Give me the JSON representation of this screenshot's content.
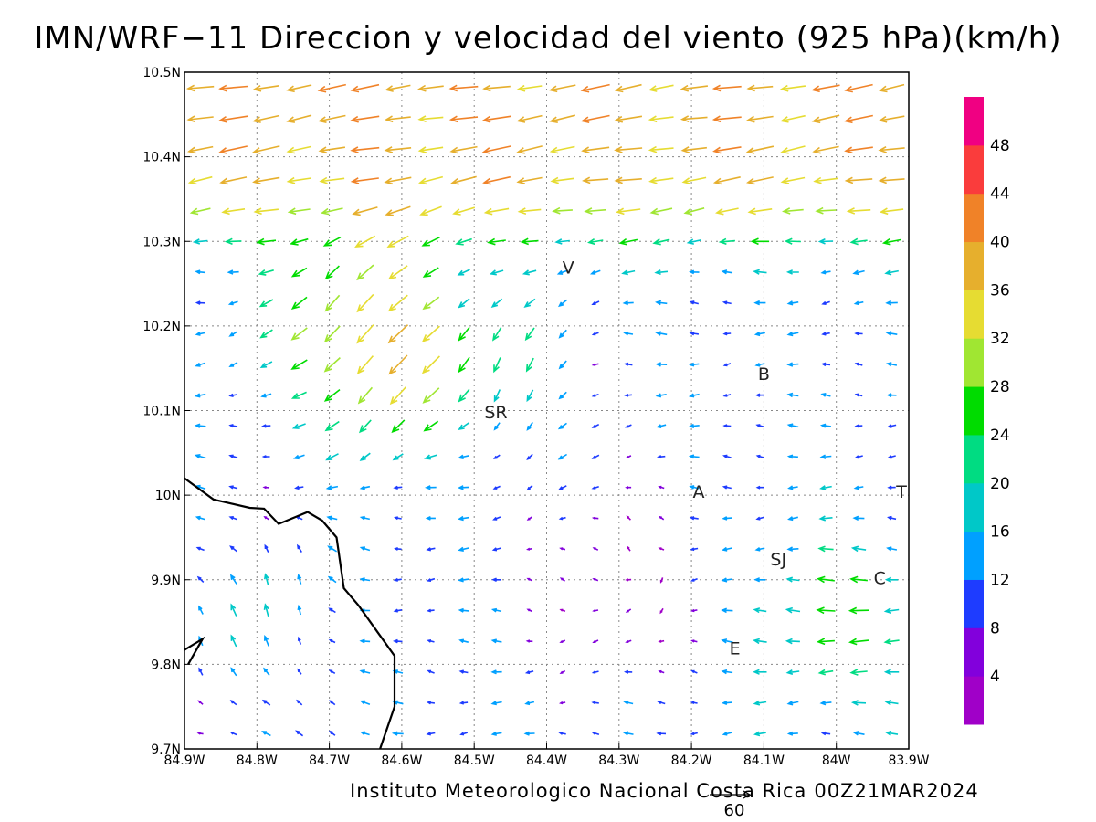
{
  "title": "IMN/WRF−11 Direccion y velocidad del viento (925 hPa)(km/h)",
  "footer": {
    "institution": "Instituto Meteorologico Nacional Costa Rica",
    "timestamp": "00Z21MAR2024"
  },
  "reference_vector": {
    "label": "60"
  },
  "map": {
    "lon_range": [
      -84.9,
      -83.9
    ],
    "lat_range": [
      9.7,
      10.5
    ],
    "lon_ticks": [
      "84.9W",
      "84.8W",
      "84.7W",
      "84.6W",
      "84.5W",
      "84.4W",
      "84.3W",
      "84.2W",
      "84.1W",
      "84W",
      "83.9W"
    ],
    "lat_ticks": [
      "9.7N",
      "9.8N",
      "9.9N",
      "10N",
      "10.1N",
      "10.2N",
      "10.3N",
      "10.4N",
      "10.5N"
    ],
    "grid": "dotted",
    "coastline": [
      [
        -84.9,
        10.02
      ],
      [
        -84.86,
        9.995
      ],
      [
        -84.81,
        9.985
      ],
      [
        -84.79,
        9.984
      ],
      [
        -84.77,
        9.966
      ],
      [
        -84.73,
        9.98
      ],
      [
        -84.71,
        9.97
      ],
      [
        -84.69,
        9.95
      ],
      [
        -84.68,
        9.89
      ],
      [
        -84.66,
        9.87
      ],
      [
        -84.635,
        9.84
      ],
      [
        -84.61,
        9.81
      ],
      [
        -84.61,
        9.75
      ],
      [
        -84.63,
        9.7
      ]
    ],
    "coastline2": [
      [
        -84.9,
        9.817
      ],
      [
        -84.875,
        9.83
      ],
      [
        -84.895,
        9.8
      ]
    ],
    "place_labels": [
      {
        "text": "V",
        "lon": -84.37,
        "lat": 10.262
      },
      {
        "text": "SR",
        "lon": -84.47,
        "lat": 10.091
      },
      {
        "text": "B",
        "lon": -84.1,
        "lat": 10.136
      },
      {
        "text": "A",
        "lon": -84.19,
        "lat": 9.997
      },
      {
        "text": "SJ",
        "lon": -84.08,
        "lat": 9.917
      },
      {
        "text": "C",
        "lon": -83.94,
        "lat": 9.895
      },
      {
        "text": "E",
        "lon": -84.14,
        "lat": 9.812
      },
      {
        "text": "T",
        "lon": -83.91,
        "lat": 9.997
      }
    ]
  },
  "colorbar": {
    "colors": [
      "#a000c8",
      "#8200dc",
      "#1e3cff",
      "#00a0ff",
      "#00c8c8",
      "#00dc82",
      "#00dc00",
      "#a0e632",
      "#e6dc32",
      "#e6af2d",
      "#f08228",
      "#fa3c3c",
      "#f00082"
    ],
    "labels": [
      "4",
      "8",
      "12",
      "16",
      "20",
      "24",
      "28",
      "32",
      "36",
      "40",
      "44",
      "48"
    ]
  },
  "chart_data": {
    "type": "vector_field",
    "quantity": "wind direction and speed at 925 hPa",
    "units": "km/h",
    "speed_scale_max": 52,
    "reference_vector_kmh": 60,
    "regions": [
      {
        "region": "northern band (10.3N-10.5N)",
        "direction": "from ENE toward WSW",
        "speed_range": [
          24,
          44
        ]
      },
      {
        "region": "northwest flow 84.9W-84.6W, 10.0N-10.3N",
        "direction": "toward SW/S",
        "speed_range": [
          28,
          48
        ]
      },
      {
        "region": "near SR (84.5W, 10.1N)",
        "direction": "southward",
        "speed_range": [
          20,
          30
        ]
      },
      {
        "region": "central plateau (84.4W-84.2W, 9.8N-10.0N)",
        "direction": "variable, light",
        "speed_range": [
          2,
          12
        ]
      },
      {
        "region": "western lowlands south of 10N",
        "direction": "toward N/NNW",
        "speed_range": [
          12,
          18
        ]
      },
      {
        "region": "east near SJ and C",
        "direction": "toward W",
        "speed_range": [
          16,
          36
        ]
      },
      {
        "region": "southeast (9.7N-9.8N, 84.2W-83.9W)",
        "direction": "toward W",
        "speed_range": [
          18,
          32
        ]
      }
    ]
  }
}
